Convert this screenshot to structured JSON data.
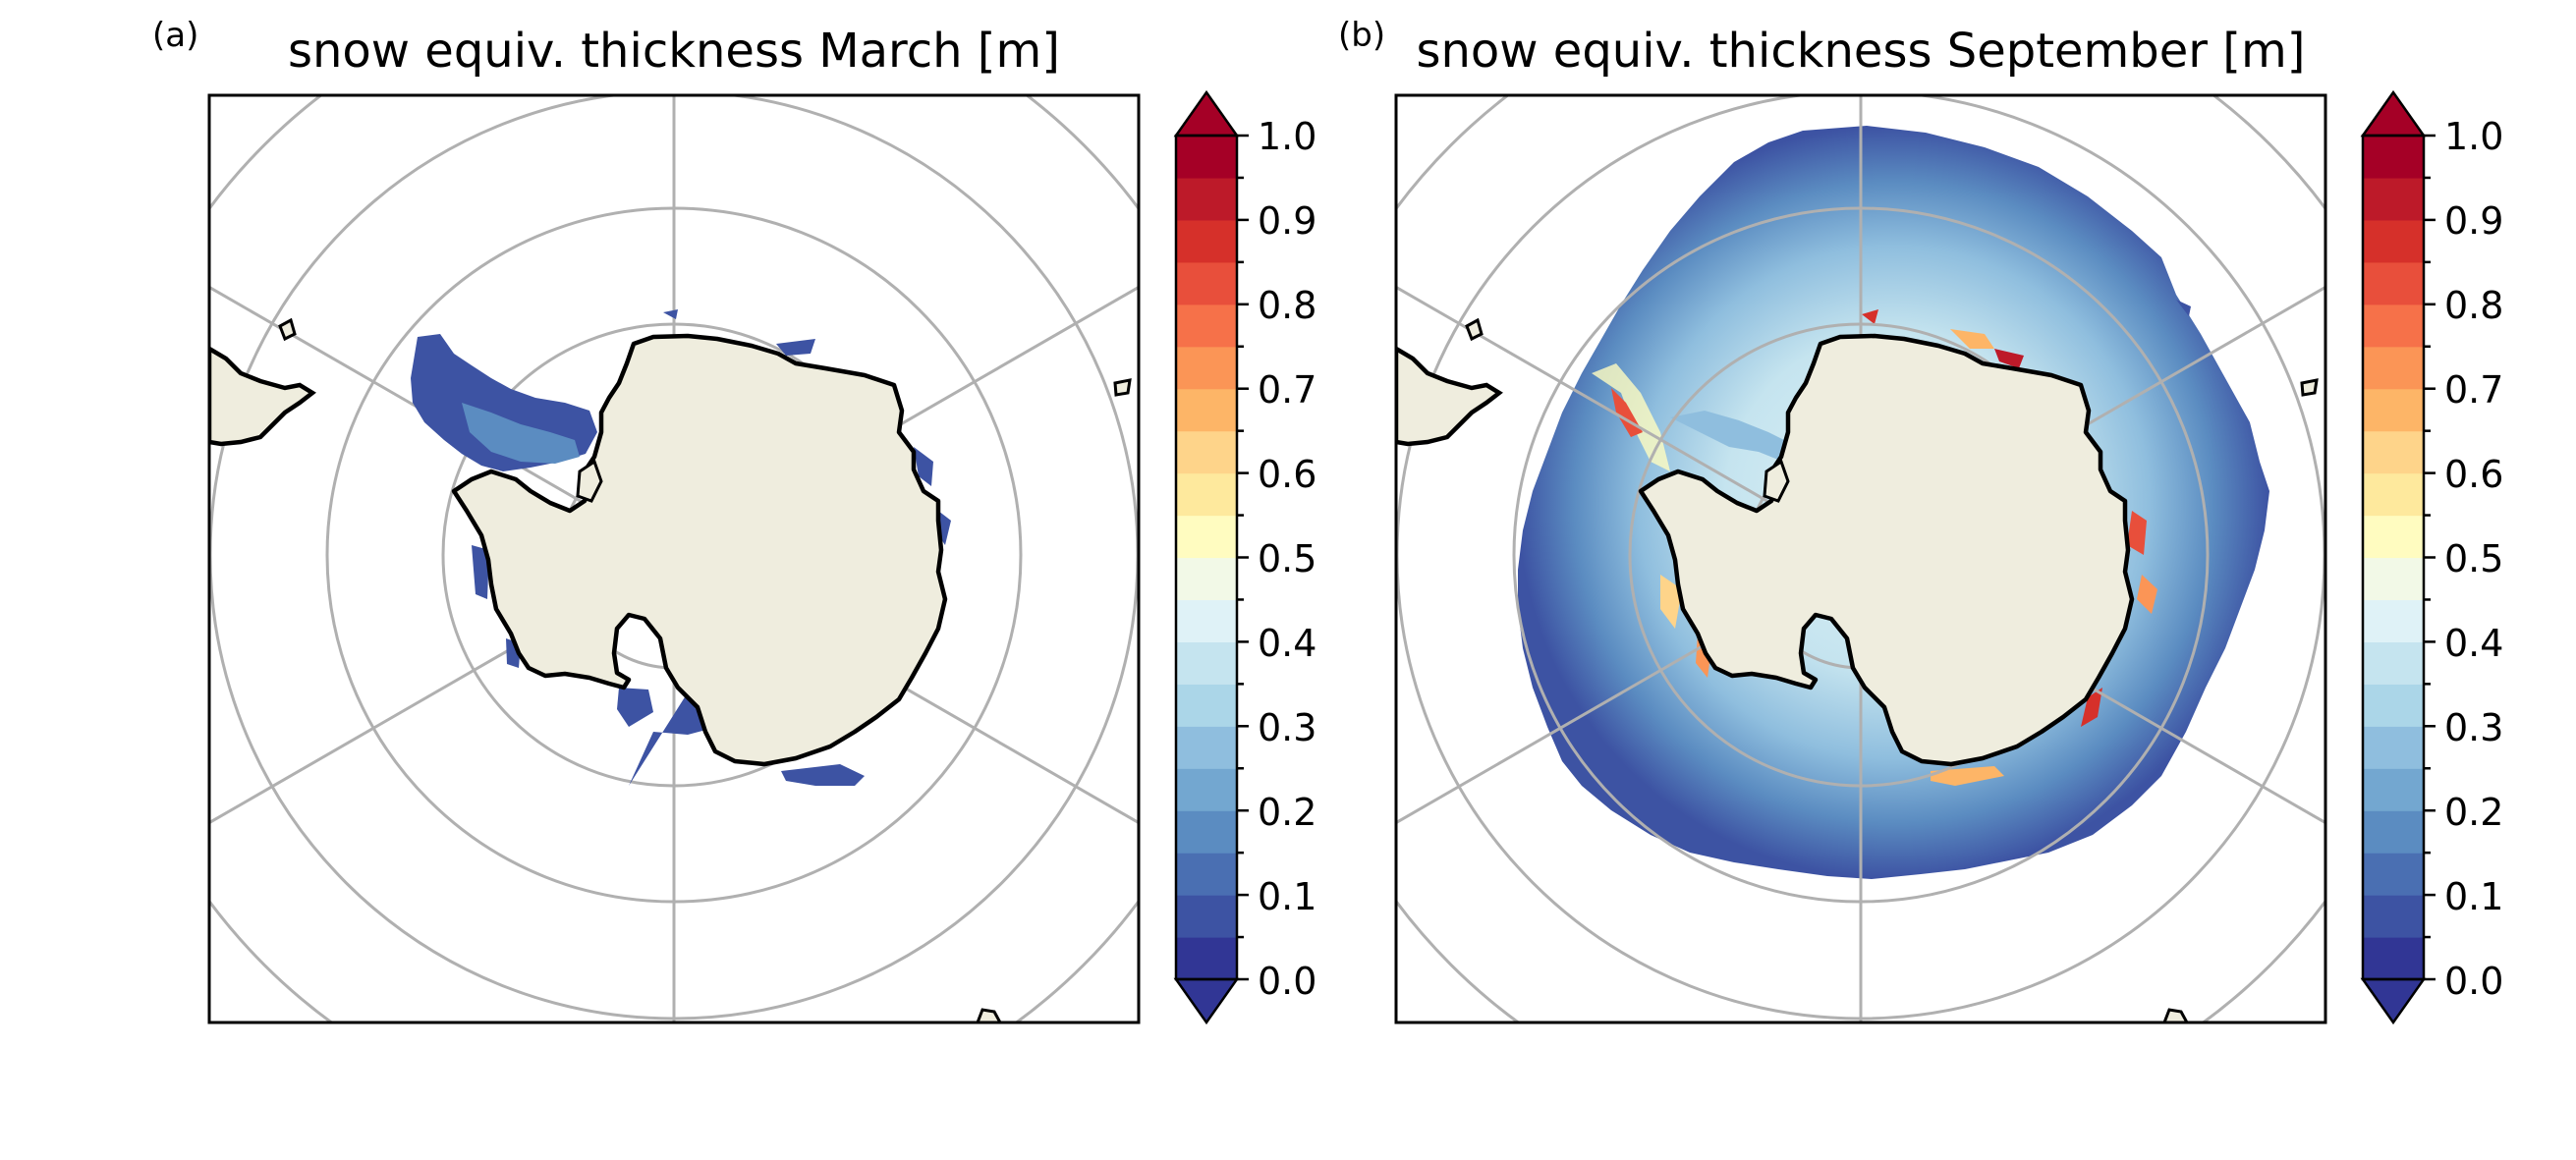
{
  "panels": [
    {
      "label": "(a)",
      "title": "snow equiv. thickness March [m]",
      "colorbar_ticks": [
        "1.0",
        "0.9",
        "0.8",
        "0.7",
        "0.6",
        "0.5",
        "0.4",
        "0.3",
        "0.2",
        "0.1",
        "0.0"
      ]
    },
    {
      "label": "(b)",
      "title": "snow equiv. thickness September [m]",
      "colorbar_ticks": [
        "1.0",
        "0.9",
        "0.8",
        "0.7",
        "0.6",
        "0.5",
        "0.4",
        "0.3",
        "0.2",
        "0.1",
        "0.0"
      ]
    }
  ],
  "colors": {
    "land": "#efedde",
    "coast": "#000000",
    "grid": "#b0b0b0",
    "colormap": [
      "#313695",
      "#3d53a3",
      "#4a6fb2",
      "#5b8cc1",
      "#73a7d0",
      "#8fbede",
      "#abd6e8",
      "#c5e4ef",
      "#dff2f7",
      "#f2f9e7",
      "#fffcc0",
      "#fee99d",
      "#fed48a",
      "#fdb567",
      "#fb9556",
      "#f67149",
      "#e84f3b",
      "#d6302a",
      "#bd1a29",
      "#a50026"
    ],
    "extend_min": "#313695",
    "extend_max": "#a50026"
  }
}
